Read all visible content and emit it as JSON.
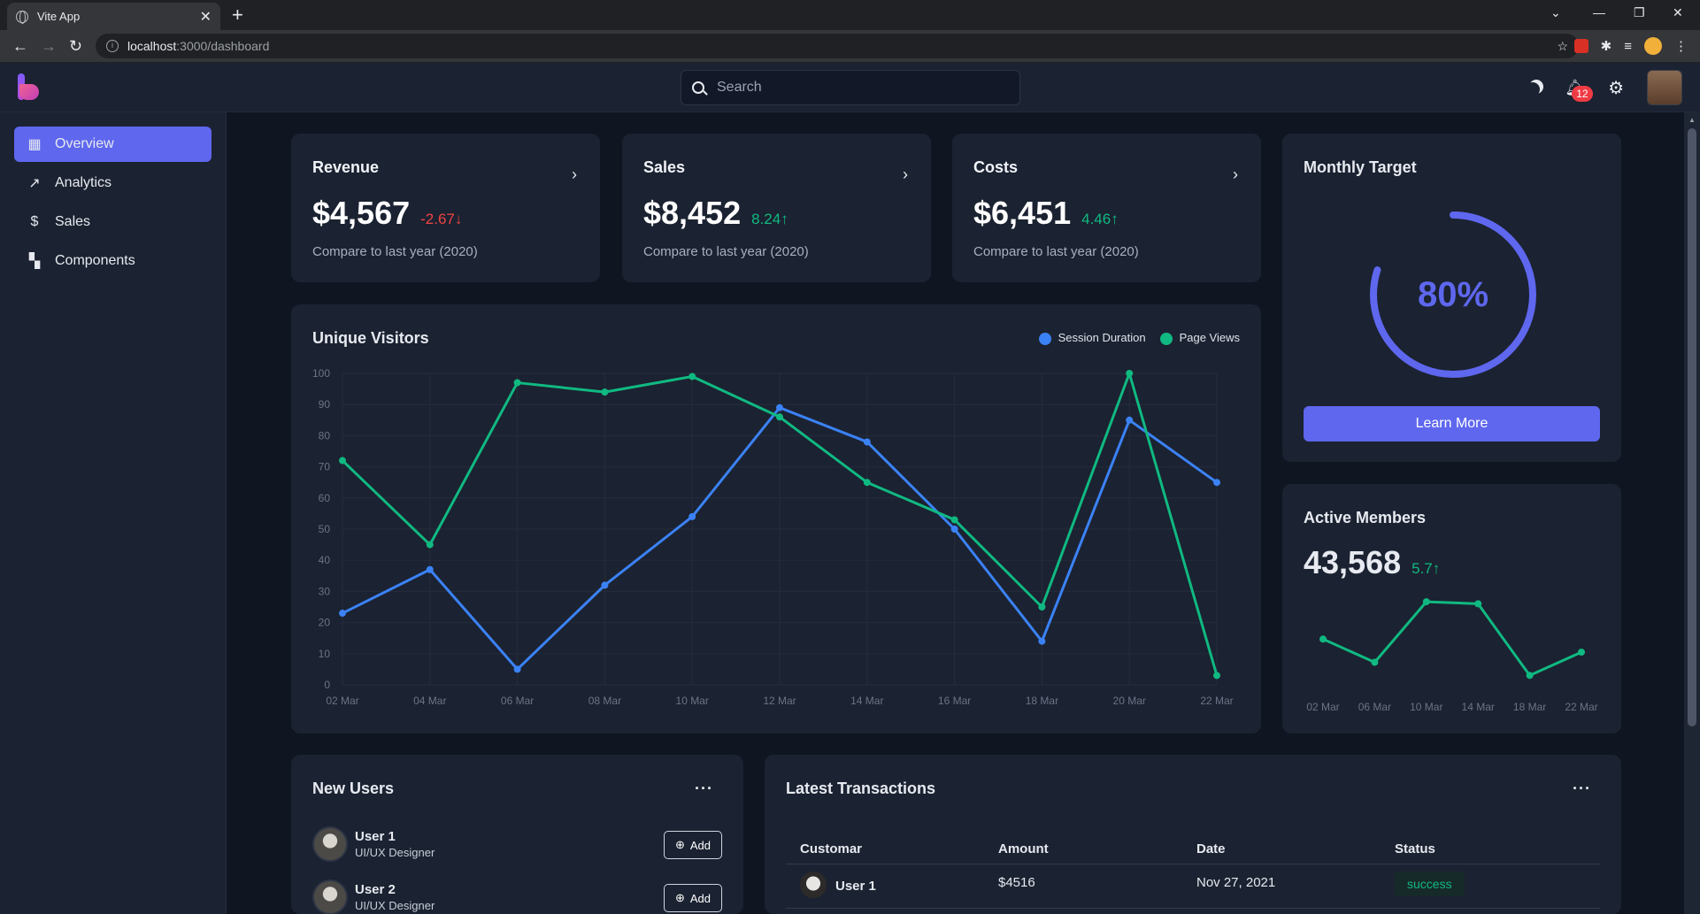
{
  "browser": {
    "tab_title": "Vite App",
    "url_host": "localhost",
    "url_path": ":3000/dashboard"
  },
  "topbar": {
    "search_placeholder": "Search",
    "notification_count": "12"
  },
  "sidebar": {
    "items": [
      {
        "label": "Overview",
        "icon": "dashboard-icon",
        "active": true
      },
      {
        "label": "Analytics",
        "icon": "trending-up-icon",
        "active": false
      },
      {
        "label": "Sales",
        "icon": "dollar-icon",
        "active": false
      },
      {
        "label": "Components",
        "icon": "grid-icon",
        "active": false
      }
    ]
  },
  "kpis": [
    {
      "title": "Revenue",
      "value": "$4,567",
      "delta": "-2.67",
      "direction": "down",
      "subtitle": "Compare to last year (2020)"
    },
    {
      "title": "Sales",
      "value": "$8,452",
      "delta": "8.24",
      "direction": "up",
      "subtitle": "Compare to last year (2020)"
    },
    {
      "title": "Costs",
      "value": "$6,451",
      "delta": "4.46",
      "direction": "up",
      "subtitle": "Compare to last year (2020)"
    }
  ],
  "colors": {
    "accent": "#5e67ee",
    "session": "#3b82f6",
    "pageviews": "#10b981",
    "negative": "#ef4444",
    "positive": "#10b981"
  },
  "chart_data": [
    {
      "type": "line",
      "title": "Unique Visitors",
      "categories": [
        "02 Mar",
        "04 Mar",
        "06 Mar",
        "08 Mar",
        "10 Mar",
        "12 Mar",
        "14 Mar",
        "16 Mar",
        "18 Mar",
        "20 Mar",
        "22 Mar"
      ],
      "series": [
        {
          "name": "Session Duration",
          "color": "#3b82f6",
          "values": [
            23,
            37,
            5,
            32,
            54,
            89,
            78,
            50,
            14,
            85,
            65
          ]
        },
        {
          "name": "Page Views",
          "color": "#10b981",
          "values": [
            72,
            45,
            97,
            94,
            99,
            86,
            65,
            53,
            25,
            100,
            3
          ]
        }
      ],
      "ylim": [
        0,
        100
      ],
      "yticks": [
        0,
        10,
        20,
        30,
        40,
        50,
        60,
        70,
        80,
        90,
        100
      ],
      "grid": true,
      "legend": "top-right"
    },
    {
      "type": "line",
      "title": "Active Members",
      "categories": [
        "02 Mar",
        "06 Mar",
        "10 Mar",
        "14 Mar",
        "18 Mar",
        "22 Mar"
      ],
      "series": [
        {
          "color": "#10b981",
          "values": [
            48,
            25,
            85,
            83,
            12,
            35
          ]
        }
      ],
      "xtick_labels": [
        "02 Mar",
        "06 Mar",
        "10 Mar",
        "14 Mar",
        "18 Mar",
        "22 Mar"
      ],
      "ylim": [
        0,
        100
      ],
      "grid": false
    }
  ],
  "monthly_target": {
    "title": "Monthly Target",
    "percent_label": "80%",
    "progress": 0.8,
    "button_label": "Learn More"
  },
  "active_members": {
    "title": "Active Members",
    "value": "43,568",
    "delta": "5.7"
  },
  "new_users": {
    "title": "New Users",
    "add_label": "Add",
    "users": [
      {
        "name": "User 1",
        "role": "UI/UX Designer"
      },
      {
        "name": "User 2",
        "role": "UI/UX Designer"
      }
    ]
  },
  "transactions": {
    "title": "Latest Transactions",
    "columns": [
      "Customar",
      "Amount",
      "Date",
      "Status"
    ],
    "rows": [
      {
        "customer": "User 1",
        "amount": "$4516",
        "date": "Nov 27, 2021",
        "status": "success"
      }
    ]
  }
}
